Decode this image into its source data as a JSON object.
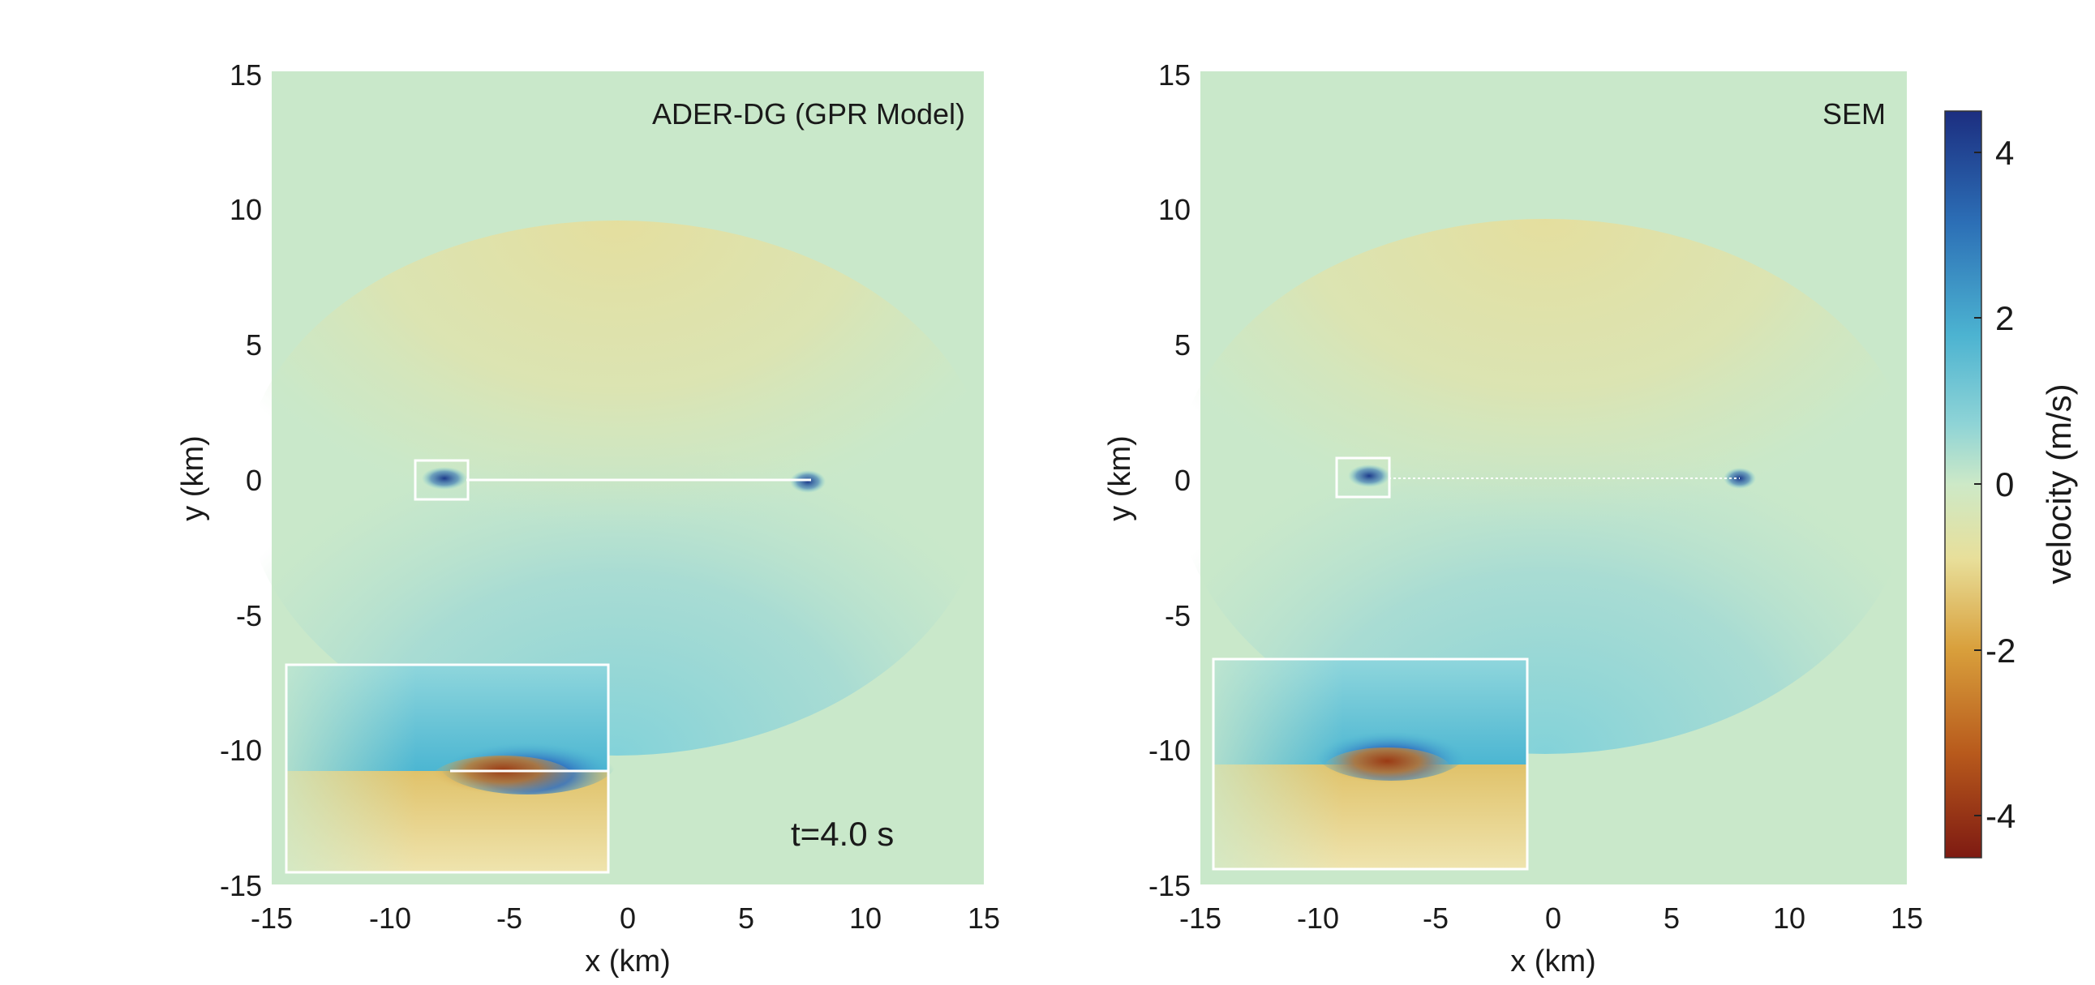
{
  "chart_data": [
    {
      "type": "heatmap",
      "title": "ADER-DG (GPR Model)",
      "xlabel": "x (km)",
      "ylabel": "y (km)",
      "xlim": [
        -15,
        15
      ],
      "ylim": [
        -15,
        15
      ],
      "xticks": [
        "-15",
        "-10",
        "-5",
        "0",
        "5",
        "10",
        "15"
      ],
      "yticks": [
        "15",
        "10",
        "5",
        "0",
        "-5",
        "-10",
        "-15"
      ],
      "annotation": "t=4.0 s",
      "fault_segment": {
        "x_start": -7.5,
        "x_end": 7.5,
        "y": 0
      },
      "zoom_box": {
        "x": [
          -9,
          -7
        ],
        "y": [
          -1,
          0.6
        ]
      },
      "inset": "zoom of boxed region"
    },
    {
      "type": "heatmap",
      "title": "SEM",
      "xlabel": "x (km)",
      "ylabel": "y (km)",
      "xlim": [
        -15,
        15
      ],
      "ylim": [
        -15,
        15
      ],
      "xticks": [
        "-15",
        "-10",
        "-5",
        "0",
        "5",
        "10",
        "15"
      ],
      "yticks": [
        "15",
        "10",
        "5",
        "0",
        "-5",
        "-10",
        "-15"
      ],
      "fault_segment": {
        "x_start": -7.5,
        "x_end": 7.5,
        "y": 0
      },
      "zoom_box": {
        "x": [
          -9,
          -7
        ],
        "y": [
          -1,
          0.6
        ]
      },
      "inset": "zoom of boxed region"
    }
  ],
  "colorbar": {
    "label": "velocity (m/s)",
    "ticks": [
      "4",
      "2",
      "0",
      "-2",
      "-4"
    ],
    "range": [
      -4.5,
      4.5
    ],
    "colors": [
      "#1c2e80",
      "#2c6fb6",
      "#5ec4d6",
      "#cde9c7",
      "#e8df9a",
      "#d9a03c",
      "#b85a1c",
      "#7e1a12"
    ]
  }
}
